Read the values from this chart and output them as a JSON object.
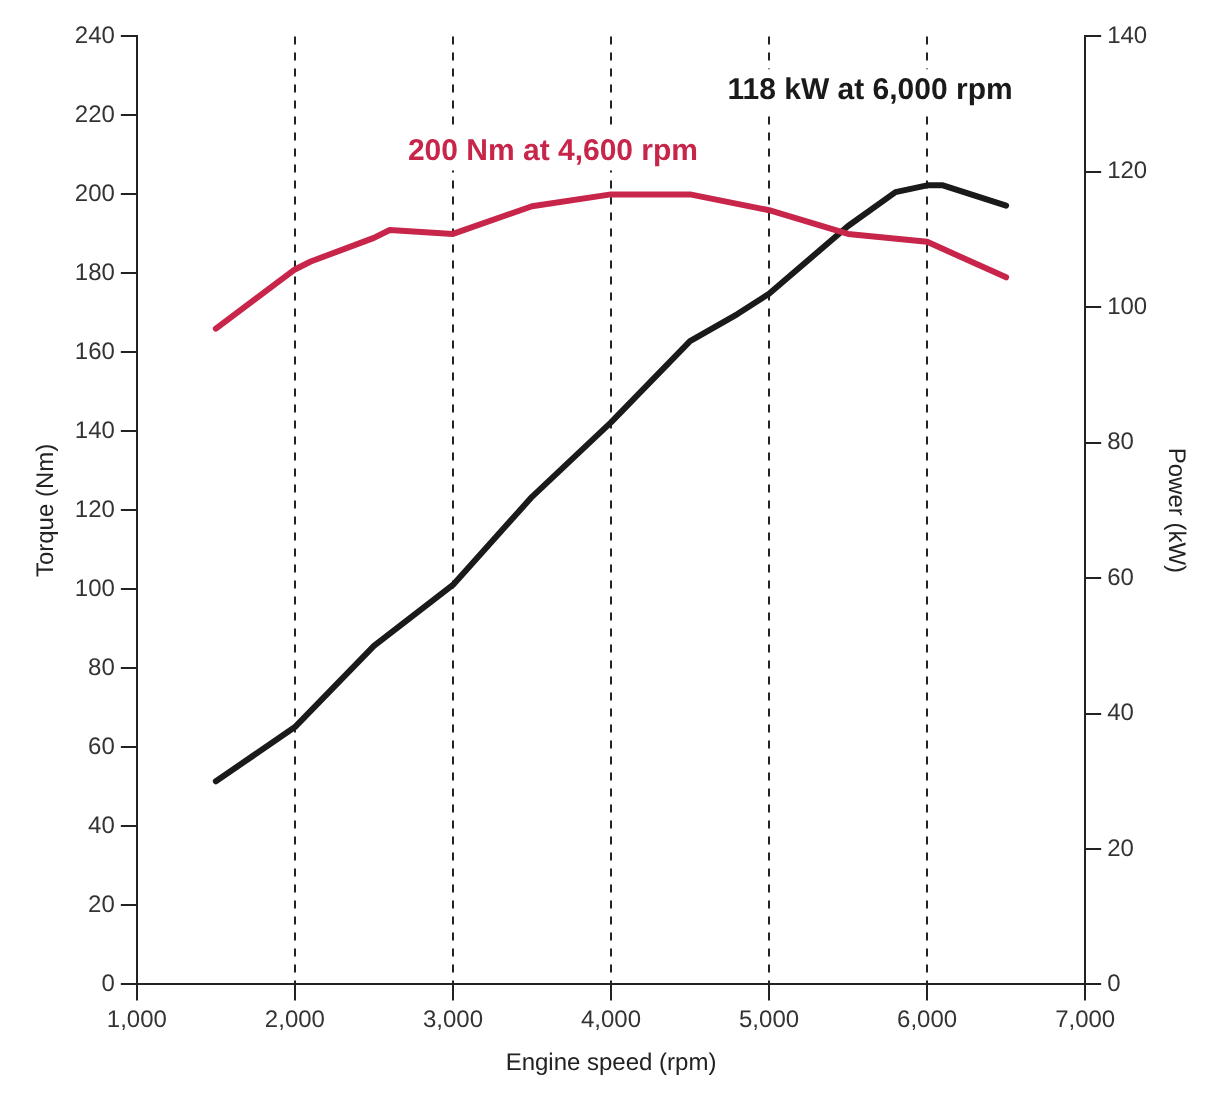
{
  "chart_data": {
    "type": "line",
    "xlabel": "Engine speed (rpm)",
    "ylabel": "Torque (Nm)",
    "y2label": "Power (kW)",
    "series": [
      {
        "color": "#c8254a",
        "x": [
          1500,
          2000,
          2100,
          2500,
          2600,
          3000,
          3500,
          4000,
          4500,
          5000,
          5500,
          6000,
          6500
        ],
        "values": [
          166,
          181,
          183,
          189,
          191,
          190,
          197,
          200,
          200,
          196,
          190,
          188,
          179
        ]
      },
      {
        "color": "#1a1a1a",
        "axis": "y2",
        "x": [
          1500,
          2000,
          2500,
          3000,
          3500,
          4000,
          4500,
          4800,
          5000,
          5500,
          5800,
          6000,
          6100,
          6500
        ],
        "values": [
          30,
          38,
          50,
          59,
          72,
          83,
          95,
          99,
          102,
          112,
          117,
          118,
          118,
          115
        ]
      }
    ],
    "annotations": [
      "200 Nm at 4,600 rpm",
      "118 kW at 6,000 rpm"
    ],
    "xlim": [
      1000,
      7000
    ],
    "xticks": [
      {
        "value": 1000,
        "label": "1,000"
      },
      {
        "value": 2000,
        "label": "2,000"
      },
      {
        "value": 3000,
        "label": "3,000"
      },
      {
        "value": 4000,
        "label": "4,000"
      },
      {
        "value": 5000,
        "label": "5,000"
      },
      {
        "value": 6000,
        "label": "6,000"
      },
      {
        "value": 7000,
        "label": "7,000"
      }
    ],
    "ylim": [
      0,
      240
    ],
    "yticks": [
      0,
      20,
      40,
      60,
      80,
      100,
      120,
      140,
      160,
      180,
      200,
      220,
      240
    ],
    "y2lim": [
      0,
      140
    ],
    "y2ticks": [
      0,
      20,
      40,
      60,
      80,
      100,
      120,
      140
    ],
    "grid": "x",
    "line_style": "solid",
    "marker": "none",
    "legend": false
  }
}
